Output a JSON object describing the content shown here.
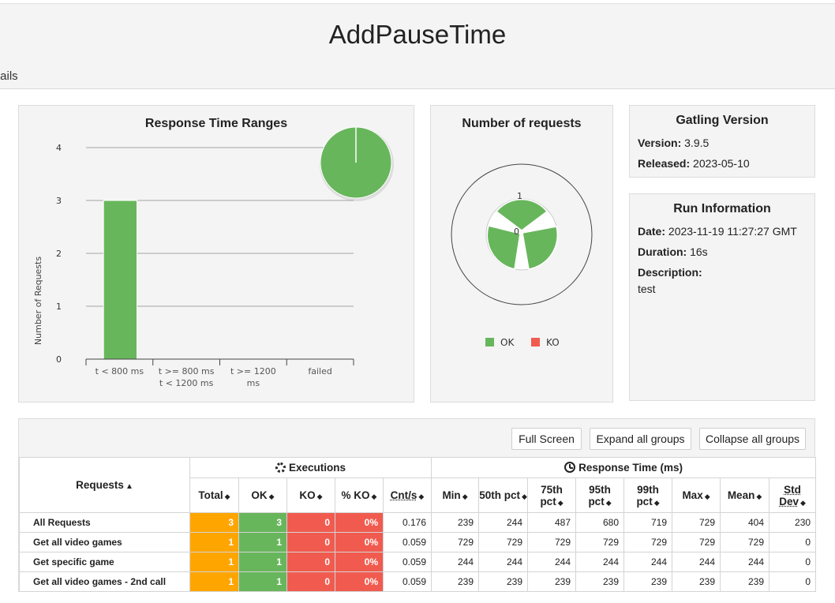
{
  "header": {
    "title": "AddPauseTime",
    "details_tab": "tails"
  },
  "response_time_ranges": {
    "title": "Response Time Ranges",
    "ylabel": "Number of Requests",
    "yticks": [
      "0",
      "1",
      "2",
      "3",
      "4"
    ],
    "categories": [
      "t < 800 ms",
      "t >= 800 ms\nt < 1200 ms",
      "t >= 1200\nms",
      "failed"
    ],
    "values": [
      3,
      0,
      0,
      0
    ],
    "ylim": [
      0,
      4
    ],
    "bar_color": "#68b65c"
  },
  "number_of_requests": {
    "title": "Number of requests",
    "label_top": "1",
    "label_center": "0",
    "legend": [
      {
        "label": "OK",
        "color": "#68b65c"
      },
      {
        "label": "KO",
        "color": "#f15b4f"
      }
    ]
  },
  "gatling_version": {
    "title": "Gatling Version",
    "version_label": "Version:",
    "version": "3.9.5",
    "released_label": "Released:",
    "released": "2023-05-10"
  },
  "run_information": {
    "title": "Run Information",
    "date_label": "Date:",
    "date": "2023-11-19 11:27:27 GMT",
    "duration_label": "Duration:",
    "duration": "16s",
    "description_label": "Description:",
    "description": "test"
  },
  "buttons": {
    "full_screen": "Full Screen",
    "expand": "Expand all groups",
    "collapse": "Collapse all groups"
  },
  "table": {
    "requests_header": "Requests",
    "executions_header": "Executions",
    "response_time_header": "Response Time (ms)",
    "columns": [
      "Total",
      "OK",
      "KO",
      "% KO",
      "Cnt/s",
      "Min",
      "50th pct",
      "75th pct",
      "95th pct",
      "99th pct",
      "Max",
      "Mean",
      "Std Dev"
    ],
    "rows": [
      {
        "name": "All Requests",
        "cells": [
          "3",
          "3",
          "0",
          "0%",
          "0.176",
          "239",
          "244",
          "487",
          "680",
          "719",
          "729",
          "404",
          "230"
        ]
      },
      {
        "name": "Get all video games",
        "cells": [
          "1",
          "1",
          "0",
          "0%",
          "0.059",
          "729",
          "729",
          "729",
          "729",
          "729",
          "729",
          "729",
          "0"
        ]
      },
      {
        "name": "Get specific game",
        "cells": [
          "1",
          "1",
          "0",
          "0%",
          "0.059",
          "244",
          "244",
          "244",
          "244",
          "244",
          "244",
          "244",
          "0"
        ]
      },
      {
        "name": "Get all video games - 2nd call",
        "cells": [
          "1",
          "1",
          "0",
          "0%",
          "0.059",
          "239",
          "239",
          "239",
          "239",
          "239",
          "239",
          "239",
          "0"
        ]
      }
    ]
  }
}
